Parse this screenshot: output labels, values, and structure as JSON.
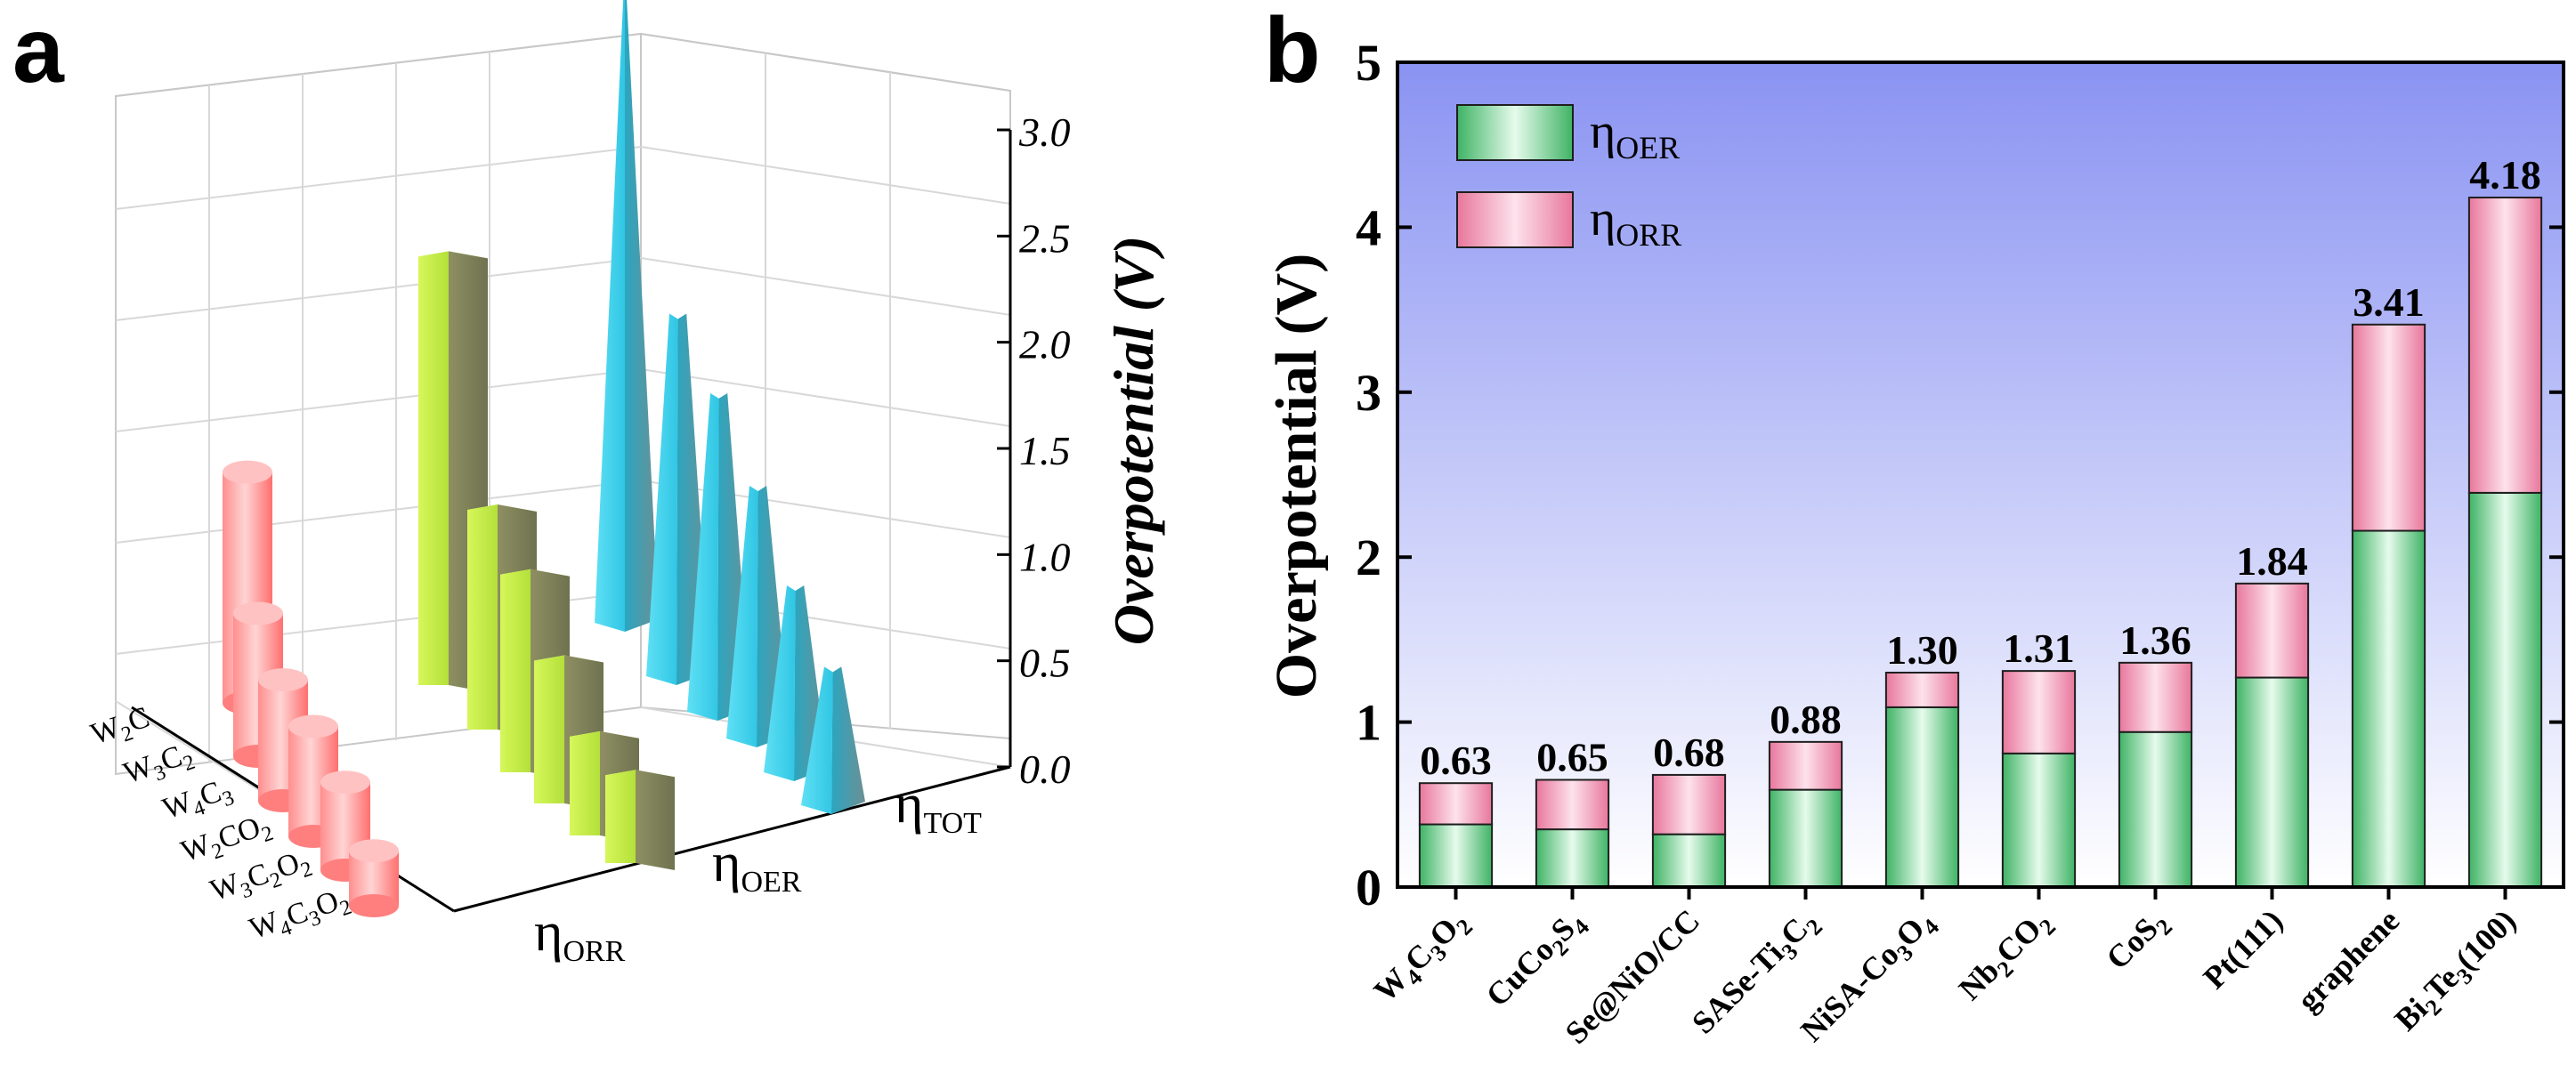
{
  "panel_a": {
    "letter": "a",
    "zlabel": "Overpotential (V)",
    "materials": [
      {
        "base": "W",
        "s1": "2",
        "mid": "C",
        "s2": "",
        "tail": "",
        "s3": ""
      },
      {
        "base": "W",
        "s1": "3",
        "mid": "C",
        "s2": "2",
        "tail": "",
        "s3": ""
      },
      {
        "base": "W",
        "s1": "4",
        "mid": "C",
        "s2": "3",
        "tail": "",
        "s3": ""
      },
      {
        "base": "W",
        "s1": "2",
        "mid": "CO",
        "s2": "2",
        "tail": "",
        "s3": ""
      },
      {
        "base": "W",
        "s1": "3",
        "mid": "C",
        "s2": "2",
        "tail": "O",
        "s3": "2"
      },
      {
        "base": "W",
        "s1": "4",
        "mid": "C",
        "s2": "3",
        "tail": "O",
        "s3": "2"
      }
    ],
    "categories": [
      {
        "main": "η",
        "sub": "ORR"
      },
      {
        "main": "η",
        "sub": "OER"
      },
      {
        "main": "η",
        "sub": "TOT"
      }
    ],
    "zticks": [
      "0.0",
      "0.5",
      "1.0",
      "1.5",
      "2.0",
      "2.5",
      "3.0"
    ]
  },
  "chart_data": [
    {
      "type": "bar",
      "panel": "a",
      "style": "3d",
      "title": "",
      "zlabel": "Overpotential (V)",
      "zlim": [
        0,
        3.0
      ],
      "categories": [
        "W2C",
        "W3C2",
        "W4C3",
        "W2CO2",
        "W3C2O2",
        "W4C3O2"
      ],
      "series": [
        {
          "name": "ηORR",
          "values": [
            1.05,
            0.65,
            0.55,
            0.5,
            0.4,
            0.25
          ]
        },
        {
          "name": "ηOER",
          "values": [
            1.95,
            1.0,
            0.9,
            0.65,
            0.45,
            0.4
          ]
        },
        {
          "name": "ηTOT",
          "values": [
            3.0,
            1.65,
            1.45,
            1.15,
            0.85,
            0.63
          ]
        }
      ]
    },
    {
      "type": "bar",
      "panel": "b",
      "stacked": true,
      "title": "",
      "xlabel": "",
      "ylabel": "Overpotential (V)",
      "ylim": [
        0,
        5
      ],
      "yticks": [
        "0",
        "1",
        "2",
        "3",
        "4",
        "5"
      ],
      "categories": [
        "W4C3O2",
        "CuCo2S4",
        "Se@NiO/CC",
        "SASe-Ti3C2",
        "NiSA-Co3O4",
        "Nb2CO2",
        "CoS2",
        "Pt(111)",
        "graphene",
        "Bi2Te3(100)"
      ],
      "series": [
        {
          "name": "ηOER",
          "values": [
            0.38,
            0.35,
            0.32,
            0.59,
            1.09,
            0.81,
            0.94,
            1.27,
            2.16,
            2.39
          ]
        },
        {
          "name": "ηORR",
          "values": [
            0.25,
            0.3,
            0.36,
            0.29,
            0.21,
            0.5,
            0.42,
            0.57,
            1.25,
            1.79
          ]
        }
      ],
      "totals": [
        "0.63",
        "0.65",
        "0.68",
        "0.88",
        "1.30",
        "1.31",
        "1.36",
        "1.84",
        "3.41",
        "4.18"
      ],
      "legend": [
        {
          "main": "η",
          "sub": "OER"
        },
        {
          "main": "η",
          "sub": "ORR"
        }
      ],
      "legend_position": "top-left"
    }
  ],
  "panel_b": {
    "letter": "b",
    "ylabel": "Overpotential (V)",
    "labels": [
      {
        "base": "W",
        "s1": "4",
        "mid": "C",
        "s2": "3",
        "tail": "O",
        "s3": "2"
      },
      {
        "base": "CuCo",
        "s1": "2",
        "mid": "S",
        "s2": "4",
        "tail": "",
        "s3": ""
      },
      {
        "base": "Se@NiO/CC",
        "s1": "",
        "mid": "",
        "s2": "",
        "tail": "",
        "s3": ""
      },
      {
        "base": "SASe-Ti",
        "s1": "3",
        "mid": "C",
        "s2": "2",
        "tail": "",
        "s3": ""
      },
      {
        "base": "NiSA-Co",
        "s1": "3",
        "mid": "O",
        "s2": "4",
        "tail": "",
        "s3": ""
      },
      {
        "base": "Nb",
        "s1": "2",
        "mid": "CO",
        "s2": "2",
        "tail": "",
        "s3": ""
      },
      {
        "base": "CoS",
        "s1": "2",
        "mid": "",
        "s2": "",
        "tail": "",
        "s3": ""
      },
      {
        "base": "Pt(111)",
        "s1": "",
        "mid": "",
        "s2": "",
        "tail": "",
        "s3": ""
      },
      {
        "base": "graphene",
        "s1": "",
        "mid": "",
        "s2": "",
        "tail": "",
        "s3": ""
      },
      {
        "base": "Bi",
        "s1": "2",
        "mid": "Te",
        "s2": "3",
        "tail": "(100)",
        "s3": ""
      }
    ]
  },
  "colors": {
    "orr_face": "#ff6f6f",
    "oer_face": "#c6f04a",
    "tot_face": "#2ec8e6",
    "oer_bar": "#58c47c",
    "orr_bar": "#ec84a6",
    "plot_bg_top": "#8a93f2",
    "plot_bg_bottom": "#ffffff"
  }
}
